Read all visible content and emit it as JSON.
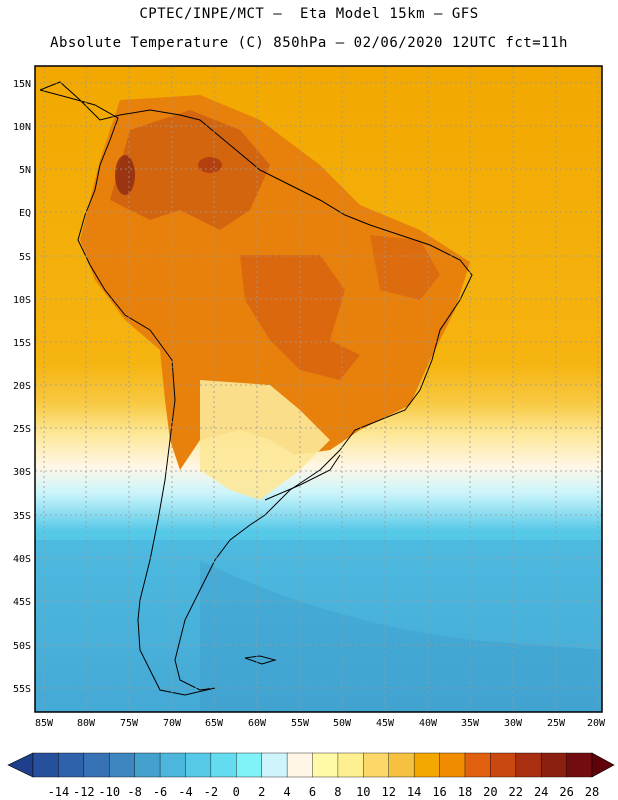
{
  "header": {
    "line1": "CPTEC/INPE/MCT –  Eta Model 15km – GFS",
    "line2": "Absolute Temperature (C) 850hPa – 02/06/2020 12UTC fct=11h"
  },
  "axes": {
    "lat_labels": [
      "15N",
      "10N",
      "5N",
      "EQ",
      "5S",
      "10S",
      "15S",
      "20S",
      "25S",
      "30S",
      "35S",
      "40S",
      "45S",
      "50S",
      "55S"
    ],
    "lon_labels": [
      "85W",
      "80W",
      "75W",
      "70W",
      "65W",
      "60W",
      "55W",
      "50W",
      "45W",
      "40W",
      "35W",
      "30W",
      "25W",
      "20W"
    ]
  },
  "colorbar": {
    "labels": [
      "-14",
      "-12",
      "-10",
      "-8",
      "-6",
      "-4",
      "-2",
      "0",
      "2",
      "4",
      "6",
      "8",
      "10",
      "12",
      "14",
      "16",
      "18",
      "20",
      "22",
      "24",
      "26",
      "28"
    ],
    "colors": [
      "#1f3f8c",
      "#27509c",
      "#2f62aa",
      "#3773b4",
      "#3d86bf",
      "#44a0cd",
      "#4cb6dc",
      "#56c9e8",
      "#63dcf0",
      "#7ff3f8",
      "#cdf5fb",
      "#fff6e6",
      "#fff9a8",
      "#fef090",
      "#fcd868",
      "#f6c040",
      "#f2a800",
      "#f08c00",
      "#e06010",
      "#c84810",
      "#a83010",
      "#8c2010",
      "#720c10",
      "#600008"
    ]
  },
  "colors": {
    "warm_ocean": "#f0a000",
    "land_hot": "#e07810",
    "land_hotter": "#d06010",
    "cool": "#fef090",
    "cold": "#56c9e8"
  }
}
